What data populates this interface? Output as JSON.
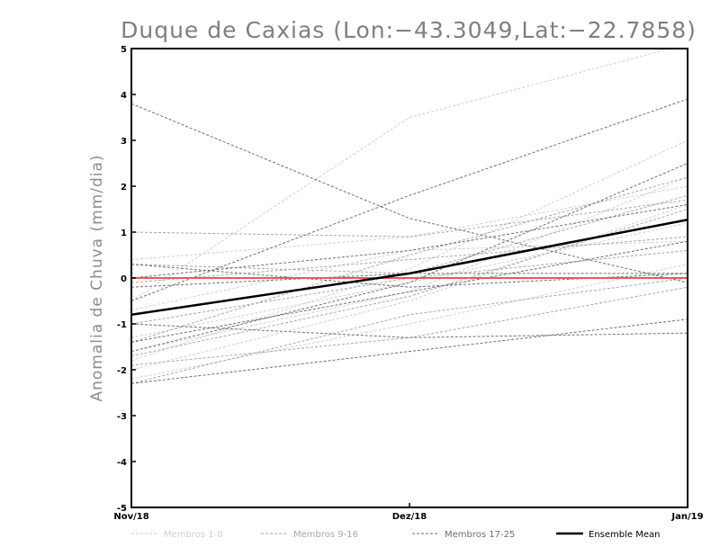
{
  "chart_data": {
    "type": "line",
    "title": "Duque de Caxias (Lon:−43.3049,Lat:−22.7858)",
    "xlabel": "",
    "ylabel": "Anomalia de Chuva (mm/dia)",
    "categories": [
      "Nov/18",
      "Dez/18",
      "Jan/19"
    ],
    "ylim": [
      -5,
      5
    ],
    "yticks": [
      -5,
      -4,
      -3,
      -2,
      -1,
      0,
      1,
      2,
      3,
      4,
      5
    ],
    "reference_line": {
      "y": 0,
      "color": "#e8595a"
    },
    "legend": [
      {
        "key": "g1",
        "label": "Membros 1-8"
      },
      {
        "key": "g2",
        "label": "Membros 9-16"
      },
      {
        "key": "g3",
        "label": "Membros 17-25"
      },
      {
        "key": "mean",
        "label": "Ensemble Mean"
      }
    ],
    "group_colors": {
      "g1": "#d0d0d0",
      "g2": "#a8a8a8",
      "g3": "#6e6e6e",
      "mean": "#000000"
    },
    "series": [
      {
        "name": "Membro 1",
        "group": "g1",
        "values": [
          -0.5,
          3.5,
          5.1
        ]
      },
      {
        "name": "Membro 2",
        "group": "g1",
        "values": [
          -1.8,
          0.2,
          3.0
        ]
      },
      {
        "name": "Membro 3",
        "group": "g1",
        "values": [
          -1.6,
          -0.3,
          2.2
        ]
      },
      {
        "name": "Membro 4",
        "group": "g1",
        "values": [
          -2.0,
          -0.5,
          1.6
        ]
      },
      {
        "name": "Membro 5",
        "group": "g1",
        "values": [
          0.4,
          0.9,
          2.0
        ]
      },
      {
        "name": "Membro 6",
        "group": "g1",
        "values": [
          -1.3,
          -0.1,
          1.2
        ]
      },
      {
        "name": "Membro 7",
        "group": "g1",
        "values": [
          -0.7,
          0.6,
          0.8
        ]
      },
      {
        "name": "Membro 8",
        "group": "g1",
        "values": [
          -2.2,
          -1.0,
          0.3
        ]
      },
      {
        "name": "Membro 9",
        "group": "g2",
        "values": [
          1.0,
          0.9,
          1.7
        ]
      },
      {
        "name": "Membro 10",
        "group": "g2",
        "values": [
          -1.4,
          0.5,
          2.2
        ]
      },
      {
        "name": "Membro 11",
        "group": "g2",
        "values": [
          0.3,
          0.1,
          1.8
        ]
      },
      {
        "name": "Membro 12",
        "group": "g2",
        "values": [
          -1.0,
          0.0,
          0.6
        ]
      },
      {
        "name": "Membro 13",
        "group": "g2",
        "values": [
          -1.7,
          -0.4,
          1.5
        ]
      },
      {
        "name": "Membro 14",
        "group": "g2",
        "values": [
          -2.3,
          -0.8,
          0.0
        ]
      },
      {
        "name": "Membro 15",
        "group": "g2",
        "values": [
          -0.1,
          0.4,
          0.9
        ]
      },
      {
        "name": "Membro 16",
        "group": "g2",
        "values": [
          -1.9,
          -1.3,
          -0.2
        ]
      },
      {
        "name": "Membro 17",
        "group": "g3",
        "values": [
          3.8,
          1.3,
          -0.1
        ]
      },
      {
        "name": "Membro 18",
        "group": "g3",
        "values": [
          -0.5,
          1.8,
          3.9
        ]
      },
      {
        "name": "Membro 19",
        "group": "g3",
        "values": [
          -1.6,
          -0.1,
          2.5
        ]
      },
      {
        "name": "Membro 20",
        "group": "g3",
        "values": [
          0.0,
          0.6,
          1.6
        ]
      },
      {
        "name": "Membro 21",
        "group": "g3",
        "values": [
          -1.0,
          -1.3,
          -1.2
        ]
      },
      {
        "name": "Membro 22",
        "group": "g3",
        "values": [
          -2.3,
          -1.6,
          -0.9
        ]
      },
      {
        "name": "Membro 23",
        "group": "g3",
        "values": [
          0.3,
          -0.2,
          0.1
        ]
      },
      {
        "name": "Membro 24",
        "group": "g3",
        "values": [
          -1.4,
          -0.3,
          0.8
        ]
      },
      {
        "name": "Membro 25",
        "group": "g3",
        "values": [
          -0.2,
          0.1,
          0.1
        ]
      },
      {
        "name": "Ensemble Mean",
        "group": "mean",
        "values": [
          -0.8,
          0.1,
          1.27
        ]
      }
    ]
  }
}
